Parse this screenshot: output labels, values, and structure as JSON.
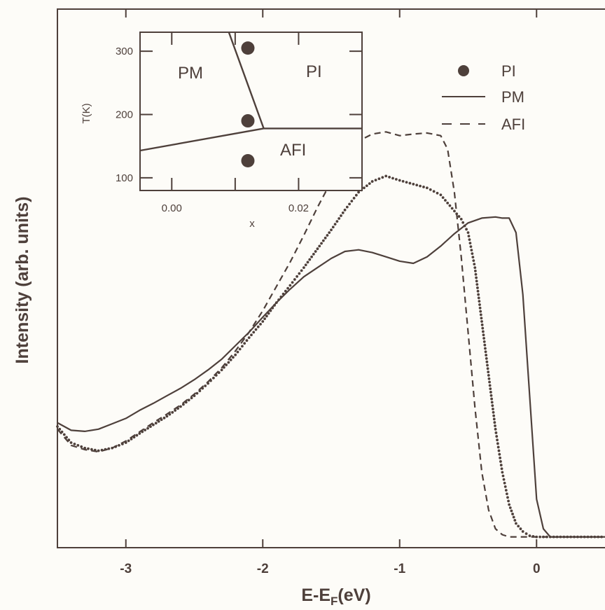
{
  "colors": {
    "ink": "#4e403b",
    "background": "#fdfcf8"
  },
  "chart_data": [
    {
      "type": "line",
      "title": "",
      "xlabel": "E-E",
      "xlabel_sub": "F",
      "xlabel_unit": "(eV)",
      "ylabel": "Intensity (arb. units)",
      "xlim": [
        -3.5,
        0.5
      ],
      "ylim": [
        0,
        1
      ],
      "xticks": [
        -3,
        -2,
        -1,
        0
      ],
      "xtick_labels": [
        "-3",
        "-2",
        "-1",
        "0"
      ],
      "yticks_labeled": false,
      "legend": {
        "placement": "top-right",
        "entries": [
          {
            "label": "PI",
            "style": "dots"
          },
          {
            "label": "PM",
            "style": "solid"
          },
          {
            "label": "AFI",
            "style": "dashed"
          }
        ]
      },
      "series": [
        {
          "name": "PM",
          "style": "solid",
          "x": [
            -3.5,
            -3.4,
            -3.3,
            -3.2,
            -3.1,
            -3.0,
            -2.9,
            -2.8,
            -2.7,
            -2.6,
            -2.5,
            -2.4,
            -2.3,
            -2.2,
            -2.1,
            -2.0,
            -1.9,
            -1.8,
            -1.7,
            -1.6,
            -1.5,
            -1.4,
            -1.3,
            -1.2,
            -1.1,
            -1.0,
            -0.9,
            -0.8,
            -0.7,
            -0.6,
            -0.5,
            -0.4,
            -0.3,
            -0.25,
            -0.2,
            -0.15,
            -0.1,
            -0.05,
            0.0,
            0.05,
            0.1,
            0.2,
            0.3,
            0.4,
            0.5
          ],
          "y": [
            0.232,
            0.218,
            0.216,
            0.22,
            0.23,
            0.24,
            0.255,
            0.268,
            0.282,
            0.296,
            0.312,
            0.33,
            0.35,
            0.375,
            0.4,
            0.428,
            0.455,
            0.48,
            0.503,
            0.52,
            0.537,
            0.55,
            0.553,
            0.548,
            0.54,
            0.532,
            0.528,
            0.54,
            0.56,
            0.583,
            0.603,
            0.612,
            0.614,
            0.612,
            0.612,
            0.585,
            0.47,
            0.28,
            0.09,
            0.035,
            0.02,
            0.02,
            0.02,
            0.02,
            0.02
          ]
        },
        {
          "name": "PI",
          "style": "dots",
          "x": [
            -3.5,
            -3.4,
            -3.3,
            -3.2,
            -3.1,
            -3.0,
            -2.9,
            -2.8,
            -2.7,
            -2.6,
            -2.5,
            -2.4,
            -2.3,
            -2.2,
            -2.1,
            -2.0,
            -1.9,
            -1.8,
            -1.7,
            -1.6,
            -1.5,
            -1.4,
            -1.3,
            -1.2,
            -1.1,
            -1.0,
            -0.9,
            -0.8,
            -0.7,
            -0.6,
            -0.55,
            -0.5,
            -0.45,
            -0.4,
            -0.35,
            -0.3,
            -0.25,
            -0.2,
            -0.15,
            -0.1,
            -0.05,
            0.0,
            0.1,
            0.2,
            0.3,
            0.4,
            0.5
          ],
          "y": [
            0.225,
            0.195,
            0.185,
            0.18,
            0.185,
            0.195,
            0.212,
            0.228,
            0.244,
            0.262,
            0.282,
            0.305,
            0.33,
            0.358,
            0.39,
            0.42,
            0.455,
            0.487,
            0.52,
            0.555,
            0.59,
            0.627,
            0.66,
            0.68,
            0.69,
            0.682,
            0.675,
            0.668,
            0.655,
            0.625,
            0.61,
            0.585,
            0.52,
            0.42,
            0.32,
            0.22,
            0.14,
            0.08,
            0.045,
            0.03,
            0.022,
            0.02,
            0.02,
            0.02,
            0.02,
            0.02,
            0.02
          ]
        },
        {
          "name": "AFI",
          "style": "dashed",
          "x": [
            -3.5,
            -3.4,
            -3.3,
            -3.2,
            -3.1,
            -3.0,
            -2.9,
            -2.8,
            -2.7,
            -2.6,
            -2.5,
            -2.4,
            -2.3,
            -2.2,
            -2.1,
            -2.0,
            -1.9,
            -1.8,
            -1.7,
            -1.6,
            -1.5,
            -1.4,
            -1.3,
            -1.2,
            -1.1,
            -1.0,
            -0.9,
            -0.8,
            -0.7,
            -0.65,
            -0.6,
            -0.55,
            -0.5,
            -0.45,
            -0.4,
            -0.35,
            -0.3,
            -0.25,
            -0.2,
            -0.1,
            0.0,
            0.1,
            0.2,
            0.3,
            0.4,
            0.5
          ],
          "y": [
            0.22,
            0.19,
            0.182,
            0.178,
            0.185,
            0.198,
            0.215,
            0.232,
            0.248,
            0.265,
            0.285,
            0.308,
            0.334,
            0.365,
            0.4,
            0.44,
            0.485,
            0.53,
            0.58,
            0.632,
            0.68,
            0.725,
            0.755,
            0.768,
            0.772,
            0.765,
            0.768,
            0.77,
            0.765,
            0.74,
            0.66,
            0.54,
            0.4,
            0.26,
            0.14,
            0.07,
            0.035,
            0.024,
            0.02,
            0.02,
            0.02,
            0.02,
            0.02,
            0.02,
            0.02,
            0.02
          ]
        }
      ]
    },
    {
      "type": "scatter",
      "title": "",
      "xlabel": "x",
      "ylabel": "T(K)",
      "xlim": [
        -0.005,
        0.03
      ],
      "ylim": [
        80,
        330
      ],
      "xticks": [
        0.0,
        0.02
      ],
      "xtick_labels": [
        "0.00",
        "0.02"
      ],
      "yticks": [
        100,
        200,
        300
      ],
      "ytick_labels": [
        "100",
        "200",
        "300"
      ],
      "points": {
        "x": [
          0.012,
          0.012,
          0.012
        ],
        "y": [
          305,
          190,
          127
        ]
      },
      "phase_boundaries": [
        {
          "x": [
            -0.005,
            0.0145
          ],
          "y": [
            143,
            178
          ]
        },
        {
          "x": [
            0.0145,
            0.03
          ],
          "y": [
            178,
            178
          ]
        },
        {
          "x": [
            0.009,
            0.0145
          ],
          "y": [
            330,
            178
          ]
        }
      ],
      "region_labels": [
        "PM",
        "PI",
        "AFI"
      ]
    }
  ]
}
